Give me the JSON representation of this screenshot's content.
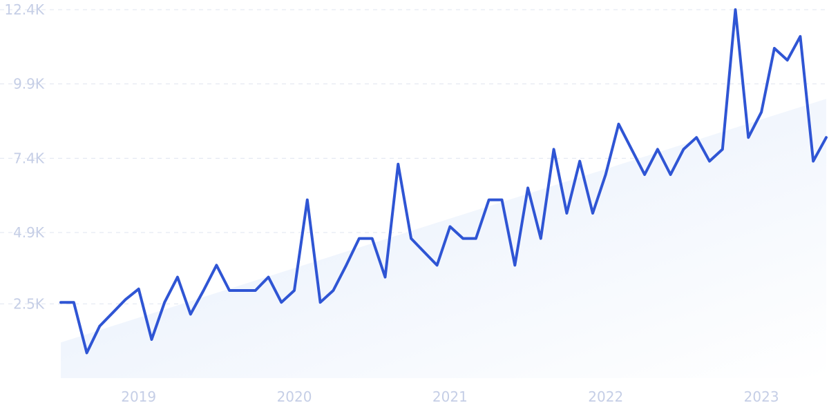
{
  "chart_data": {
    "type": "line",
    "title": "",
    "xlabel": "",
    "ylabel": "",
    "ylim": [
      0,
      12.4
    ],
    "y_tick_labels": [
      "2.5K",
      "4.9K",
      "7.4K",
      "9.9K",
      "12.4K"
    ],
    "y_tick_values": [
      2.5,
      4.9,
      7.4,
      9.9,
      12.4
    ],
    "x_tick_labels": [
      "2019",
      "2020",
      "2021",
      "2022",
      "2023"
    ],
    "x_tick_values": [
      "2019-01",
      "2020-01",
      "2021-01",
      "2022-01",
      "2023-01"
    ],
    "grid": true,
    "colors": {
      "line": "#2f55d4",
      "trend_fill_start": "#e4edfb",
      "trend_fill_end": "#ffffff",
      "grid": "#dfe4ef",
      "tick_text": "#c5cee6"
    },
    "series": [
      {
        "x": [
          "2018-07",
          "2018-08",
          "2018-09",
          "2018-10",
          "2018-11",
          "2018-12",
          "2019-01",
          "2019-02",
          "2019-03",
          "2019-04",
          "2019-05",
          "2019-06",
          "2019-07",
          "2019-08",
          "2019-09",
          "2019-10",
          "2019-11",
          "2019-12",
          "2020-01",
          "2020-02",
          "2020-03",
          "2020-04",
          "2020-05",
          "2020-06",
          "2020-07",
          "2020-08",
          "2020-09",
          "2020-10",
          "2020-11",
          "2020-12",
          "2021-01",
          "2021-02",
          "2021-03",
          "2021-04",
          "2021-05",
          "2021-06",
          "2021-07",
          "2021-08",
          "2021-09",
          "2021-10",
          "2021-11",
          "2021-12",
          "2022-01",
          "2022-02",
          "2022-03",
          "2022-04",
          "2022-05",
          "2022-06",
          "2022-07",
          "2022-08",
          "2022-09",
          "2022-10",
          "2022-11",
          "2022-12",
          "2023-01",
          "2023-02",
          "2023-03",
          "2023-04",
          "2023-05",
          "2023-06"
        ],
        "values": [
          2.55,
          2.55,
          0.85,
          1.75,
          2.2,
          2.65,
          3.0,
          1.3,
          2.55,
          3.4,
          2.15,
          2.95,
          3.8,
          2.95,
          2.95,
          2.95,
          3.4,
          2.55,
          2.95,
          6.0,
          2.55,
          2.95,
          3.8,
          4.7,
          4.7,
          3.4,
          7.2,
          4.7,
          4.25,
          3.8,
          5.1,
          4.7,
          4.7,
          6.0,
          6.0,
          3.8,
          6.4,
          4.7,
          7.7,
          5.55,
          7.3,
          5.55,
          6.85,
          8.55,
          7.7,
          6.85,
          7.7,
          6.85,
          7.7,
          8.1,
          7.3,
          7.7,
          12.4,
          8.1,
          8.95,
          11.1,
          10.7,
          11.5,
          7.3,
          8.1
        ]
      }
    ],
    "trend": {
      "start": {
        "x": "2018-07",
        "value": 1.2
      },
      "end": {
        "x": "2023-06",
        "value": 9.4
      }
    }
  }
}
